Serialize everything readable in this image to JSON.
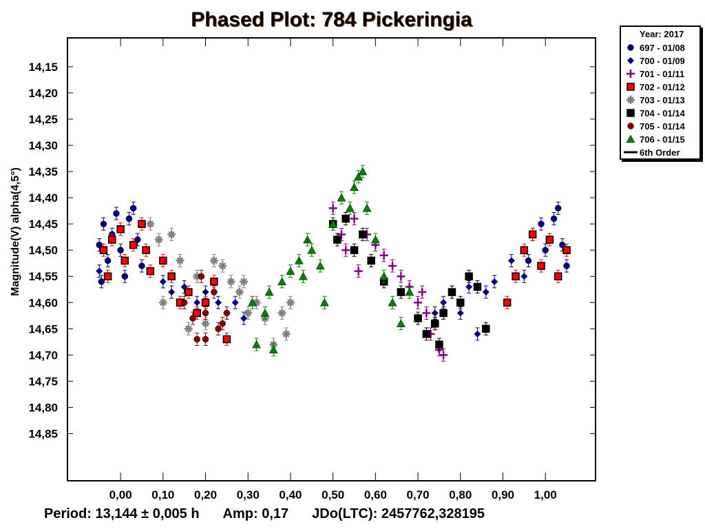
{
  "chart_data": {
    "type": "scatter",
    "title": "Phased Plot: 784 Pickeringia",
    "ylabel": "Magnitude(V) alpha(4,5°)",
    "xlabel": "",
    "xlim": [
      -0.125,
      1.118
    ],
    "ylim": [
      14.94,
      14.095
    ],
    "y_inverted": true,
    "grid": false,
    "legend_placement": "outside-top-right",
    "legend_title": "Year: 2017",
    "x_ticks": [
      "0,00",
      "0,10",
      "0,20",
      "0,30",
      "0,40",
      "0,50",
      "0,60",
      "0,70",
      "0,80",
      "0,90",
      "1,00"
    ],
    "y_ticks": [
      "14,15",
      "14,20",
      "14,25",
      "14,30",
      "14,35",
      "14,40",
      "14,45",
      "14,50",
      "14,55",
      "14,60",
      "14,65",
      "14,70",
      "14,75",
      "14,80",
      "14,85"
    ],
    "series": [
      {
        "name": "697 - 01/08",
        "marker": "circle",
        "color": "#000080",
        "points": [
          [
            -0.05,
            14.49
          ],
          [
            -0.04,
            14.45
          ],
          [
            -0.03,
            14.52
          ],
          [
            -0.02,
            14.47
          ],
          [
            -0.01,
            14.43
          ],
          [
            0.0,
            14.5
          ],
          [
            0.01,
            14.55
          ],
          [
            0.02,
            14.44
          ],
          [
            0.03,
            14.42
          ],
          [
            0.04,
            14.48
          ],
          [
            0.05,
            14.53
          ],
          [
            0.96,
            14.52
          ],
          [
            0.97,
            14.47
          ],
          [
            0.99,
            14.45
          ],
          [
            1.0,
            14.5
          ],
          [
            1.02,
            14.44
          ],
          [
            1.03,
            14.42
          ],
          [
            1.04,
            14.49
          ],
          [
            1.05,
            14.53
          ],
          [
            -0.045,
            14.56
          ]
        ]
      },
      {
        "name": "700 - 01/09",
        "marker": "diamond",
        "color": "#000080",
        "points": [
          [
            0.1,
            14.56
          ],
          [
            0.12,
            14.58
          ],
          [
            0.15,
            14.57
          ],
          [
            0.18,
            14.6
          ],
          [
            0.2,
            14.58
          ],
          [
            0.23,
            14.6
          ],
          [
            0.25,
            14.62
          ],
          [
            0.27,
            14.6
          ],
          [
            0.29,
            14.63
          ],
          [
            0.74,
            14.62
          ],
          [
            0.76,
            14.6
          ],
          [
            0.78,
            14.58
          ],
          [
            0.8,
            14.62
          ],
          [
            0.82,
            14.57
          ],
          [
            0.84,
            14.66
          ],
          [
            0.86,
            14.58
          ],
          [
            0.88,
            14.56
          ],
          [
            0.92,
            14.52
          ],
          [
            0.95,
            14.55
          ],
          [
            -0.05,
            14.54
          ]
        ]
      },
      {
        "name": "701 - 01/11",
        "marker": "plus",
        "color": "#800080",
        "points": [
          [
            0.5,
            14.42
          ],
          [
            0.52,
            14.47
          ],
          [
            0.53,
            14.5
          ],
          [
            0.55,
            14.44
          ],
          [
            0.56,
            14.54
          ],
          [
            0.58,
            14.47
          ],
          [
            0.6,
            14.49
          ],
          [
            0.62,
            14.51
          ],
          [
            0.64,
            14.53
          ],
          [
            0.66,
            14.55
          ],
          [
            0.68,
            14.57
          ],
          [
            0.7,
            14.6
          ],
          [
            0.72,
            14.62
          ],
          [
            0.73,
            14.66
          ],
          [
            0.74,
            14.64
          ],
          [
            0.75,
            14.69
          ],
          [
            0.76,
            14.7
          ],
          [
            0.71,
            14.58
          ]
        ]
      },
      {
        "name": "702 - 01/12",
        "marker": "square",
        "color": "#ff0000",
        "points": [
          [
            -0.04,
            14.5
          ],
          [
            -0.03,
            14.55
          ],
          [
            -0.02,
            14.48
          ],
          [
            0.0,
            14.46
          ],
          [
            0.01,
            14.52
          ],
          [
            0.03,
            14.49
          ],
          [
            0.05,
            14.45
          ],
          [
            0.06,
            14.5
          ],
          [
            0.07,
            14.54
          ],
          [
            0.1,
            14.52
          ],
          [
            0.12,
            14.55
          ],
          [
            0.14,
            14.6
          ],
          [
            0.16,
            14.58
          ],
          [
            0.18,
            14.62
          ],
          [
            0.2,
            14.6
          ],
          [
            0.22,
            14.56
          ],
          [
            0.25,
            14.67
          ],
          [
            0.91,
            14.6
          ],
          [
            0.93,
            14.55
          ],
          [
            0.95,
            14.5
          ],
          [
            0.97,
            14.47
          ],
          [
            0.99,
            14.53
          ],
          [
            1.01,
            14.48
          ],
          [
            1.03,
            14.55
          ],
          [
            1.05,
            14.5
          ]
        ]
      },
      {
        "name": "703 - 01/13",
        "marker": "star",
        "color": "#808080",
        "points": [
          [
            0.07,
            14.45
          ],
          [
            0.09,
            14.48
          ],
          [
            0.1,
            14.6
          ],
          [
            0.12,
            14.47
          ],
          [
            0.14,
            14.52
          ],
          [
            0.16,
            14.65
          ],
          [
            0.18,
            14.55
          ],
          [
            0.2,
            14.64
          ],
          [
            0.22,
            14.52
          ],
          [
            0.24,
            14.53
          ],
          [
            0.26,
            14.56
          ],
          [
            0.28,
            14.58
          ],
          [
            0.3,
            14.62
          ],
          [
            0.32,
            14.6
          ],
          [
            0.34,
            14.63
          ],
          [
            0.36,
            14.68
          ],
          [
            0.38,
            14.62
          ],
          [
            0.39,
            14.66
          ],
          [
            0.4,
            14.6
          ],
          [
            0.29,
            14.56
          ]
        ]
      },
      {
        "name": "704 - 01/14",
        "marker": "square",
        "color": "#000000",
        "points": [
          [
            0.5,
            14.45
          ],
          [
            0.51,
            14.48
          ],
          [
            0.53,
            14.44
          ],
          [
            0.55,
            14.5
          ],
          [
            0.57,
            14.47
          ],
          [
            0.59,
            14.52
          ],
          [
            0.62,
            14.56
          ],
          [
            0.66,
            14.58
          ],
          [
            0.7,
            14.63
          ],
          [
            0.72,
            14.66
          ],
          [
            0.74,
            14.64
          ],
          [
            0.76,
            14.62
          ],
          [
            0.78,
            14.58
          ],
          [
            0.8,
            14.6
          ],
          [
            0.82,
            14.55
          ],
          [
            0.84,
            14.57
          ],
          [
            0.86,
            14.65
          ],
          [
            0.75,
            14.68
          ]
        ]
      },
      {
        "name": "705 - 01/14",
        "marker": "circle",
        "color": "#800000",
        "points": [
          [
            0.15,
            14.6
          ],
          [
            0.17,
            14.63
          ],
          [
            0.18,
            14.67
          ],
          [
            0.2,
            14.62
          ],
          [
            0.2,
            14.67
          ],
          [
            0.22,
            14.58
          ],
          [
            0.23,
            14.65
          ],
          [
            0.24,
            14.64
          ],
          [
            0.25,
            14.62
          ],
          [
            0.19,
            14.55
          ]
        ]
      },
      {
        "name": "706 - 01/15",
        "marker": "triangle",
        "color": "#008000",
        "points": [
          [
            0.31,
            14.6
          ],
          [
            0.32,
            14.68
          ],
          [
            0.34,
            14.62
          ],
          [
            0.35,
            14.58
          ],
          [
            0.36,
            14.69
          ],
          [
            0.38,
            14.56
          ],
          [
            0.4,
            14.54
          ],
          [
            0.42,
            14.52
          ],
          [
            0.43,
            14.55
          ],
          [
            0.45,
            14.5
          ],
          [
            0.47,
            14.53
          ],
          [
            0.48,
            14.6
          ],
          [
            0.5,
            14.45
          ],
          [
            0.52,
            14.4
          ],
          [
            0.54,
            14.42
          ],
          [
            0.55,
            14.38
          ],
          [
            0.56,
            14.36
          ],
          [
            0.57,
            14.35
          ],
          [
            0.58,
            14.42
          ],
          [
            0.6,
            14.48
          ],
          [
            0.62,
            14.55
          ],
          [
            0.64,
            14.6
          ],
          [
            0.66,
            14.64
          ],
          [
            0.68,
            14.58
          ],
          [
            0.44,
            14.48
          ]
        ]
      }
    ],
    "fit_curve": {
      "name": "6th Order",
      "color": "#000000"
    }
  },
  "footer": {
    "period": "Period: 13,144 ± 0,005 h",
    "amp": "Amp: 0,17",
    "jdo": "JDo(LTC): 2457762,328195"
  }
}
